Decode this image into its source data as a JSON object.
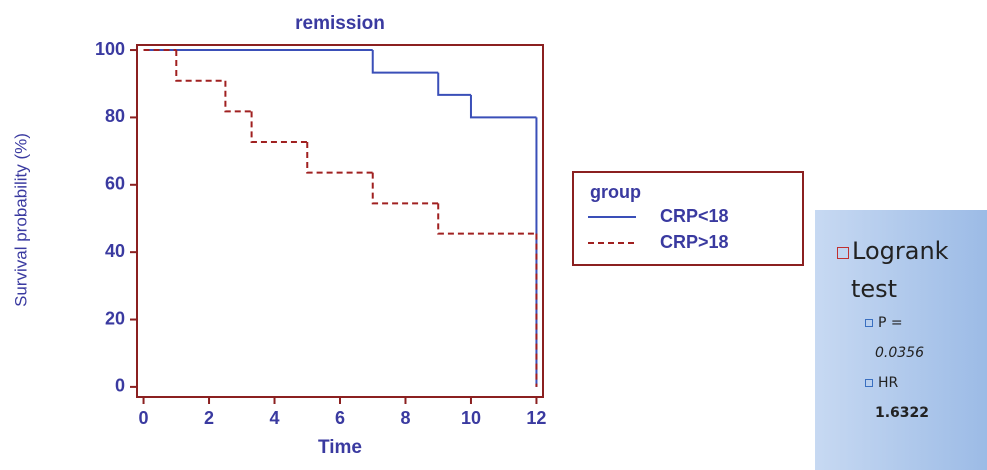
{
  "chart_data": {
    "type": "step",
    "title": "remission",
    "x_label": "Time",
    "y_label": "Survival probability (%)",
    "xlim": [
      -0.2,
      12.2
    ],
    "ylim": [
      -3,
      101.5
    ],
    "xticks": [
      0,
      2,
      4,
      6,
      8,
      10,
      12
    ],
    "yticks": [
      0,
      20,
      40,
      60,
      80,
      100
    ],
    "legend_title": "group",
    "series": [
      {
        "name": "CRP<18",
        "color": "#3a4fb8",
        "dash": "solid",
        "x": [
          0,
          7,
          9,
          10,
          12
        ],
        "values": [
          100,
          93.3,
          86.7,
          80,
          0
        ]
      },
      {
        "name": "CRP>18",
        "color": "#a02020",
        "dash": "dashed",
        "x": [
          0,
          1,
          2.5,
          3.3,
          5,
          7,
          9,
          12
        ],
        "values": [
          100,
          90.9,
          81.8,
          72.7,
          63.6,
          54.5,
          45.5,
          0
        ]
      }
    ]
  },
  "stats_box": {
    "title": "Logrank test",
    "items": [
      {
        "label": "P =",
        "value": "0.0356"
      },
      {
        "label": "HR",
        "value": "1.6322"
      }
    ]
  }
}
